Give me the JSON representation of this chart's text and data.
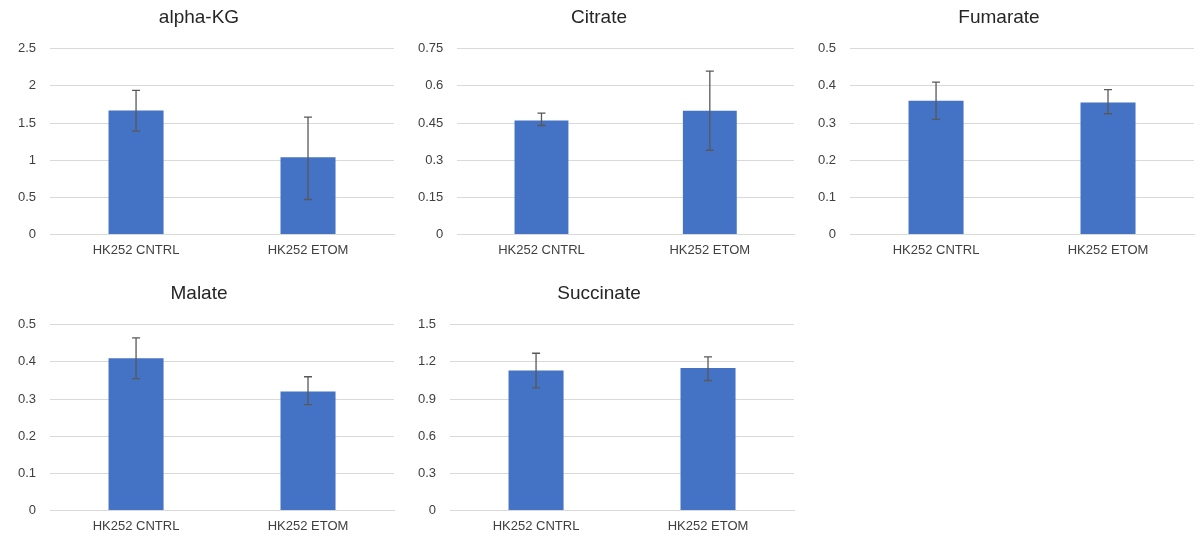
{
  "chart_data": [
    {
      "type": "bar",
      "title": "alpha-KG",
      "categories": [
        "HK252 CNTRL",
        "HK252 ETOM"
      ],
      "values": [
        1.67,
        1.04
      ],
      "color": "#4472c4",
      "errors": [
        [
          1.39,
          1.94
        ],
        [
          0.47,
          1.58
        ]
      ],
      "ylim": [
        0,
        2.5
      ],
      "yticks": [
        0,
        0.5,
        1,
        1.5,
        2,
        2.5
      ],
      "grid": "y"
    },
    {
      "type": "bar",
      "title": "Citrate",
      "categories": [
        "HK252 CNTRL",
        "HK252 ETOM"
      ],
      "values": [
        0.46,
        0.5
      ],
      "color": "#4472c4",
      "errors": [
        [
          0.44,
          0.49
        ],
        [
          0.34,
          0.66
        ]
      ],
      "ylim": [
        0,
        0.75
      ],
      "yticks": [
        0,
        0.15,
        0.3,
        0.45,
        0.6,
        0.75
      ],
      "grid": "y"
    },
    {
      "type": "bar",
      "title": "Fumarate",
      "categories": [
        "HK252 CNTRL",
        "HK252 ETOM"
      ],
      "values": [
        0.36,
        0.355
      ],
      "color": "#4472c4",
      "errors": [
        [
          0.31,
          0.41
        ],
        [
          0.325,
          0.39
        ]
      ],
      "ylim": [
        0,
        0.5
      ],
      "yticks": [
        0,
        0.1,
        0.2,
        0.3,
        0.4,
        0.5
      ],
      "grid": "y"
    },
    {
      "type": "bar",
      "title": "Malate",
      "categories": [
        "HK252 CNTRL",
        "HK252 ETOM"
      ],
      "values": [
        0.41,
        0.32
      ],
      "color": "#4472c4",
      "errors": [
        [
          0.355,
          0.465
        ],
        [
          0.285,
          0.36
        ]
      ],
      "ylim": [
        0,
        0.5
      ],
      "yticks": [
        0,
        0.1,
        0.2,
        0.3,
        0.4,
        0.5
      ],
      "grid": "y"
    },
    {
      "type": "bar",
      "title": "Succinate",
      "categories": [
        "HK252 CNTRL",
        "HK252 ETOM"
      ],
      "values": [
        1.13,
        1.15
      ],
      "color": "#4472c4",
      "errors": [
        [
          0.99,
          1.27
        ],
        [
          1.05,
          1.24
        ]
      ],
      "ylim": [
        0,
        1.5
      ],
      "yticks": [
        0,
        0.3,
        0.6,
        0.9,
        1.2,
        1.5
      ],
      "grid": "y"
    }
  ]
}
